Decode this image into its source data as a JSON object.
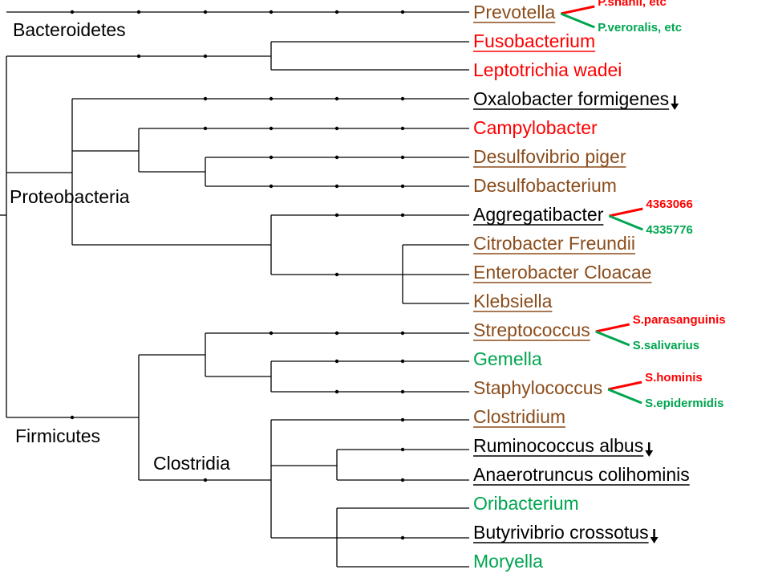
{
  "colors": {
    "black": "#000000",
    "red": "#ff0000",
    "brown": "#8b4d1c",
    "green": "#00a550"
  },
  "groups": {
    "bacteroidetes": "Bacteroidetes",
    "proteobacteria": "Proteobacteria",
    "firmicutes": "Firmicutes",
    "clostridia": "Clostridia"
  },
  "taxa": [
    {
      "label": "Prevotella",
      "color": "brown",
      "underline": true,
      "arrow": false
    },
    {
      "label": "Fusobacterium",
      "color": "red",
      "underline": true,
      "arrow": false
    },
    {
      "label": "Leptotrichia wadei",
      "color": "red",
      "underline": false,
      "arrow": false
    },
    {
      "label": "Oxalobacter formigenes",
      "color": "black",
      "underline": true,
      "arrow": true
    },
    {
      "label": "Campylobacter",
      "color": "red",
      "underline": false,
      "arrow": false
    },
    {
      "label": "Desulfovibrio piger",
      "color": "brown",
      "underline": true,
      "arrow": false
    },
    {
      "label": "Desulfobacterium",
      "color": "brown",
      "underline": false,
      "arrow": false
    },
    {
      "label": "Aggregatibacter",
      "color": "black",
      "underline": true,
      "arrow": false
    },
    {
      "label": "Citrobacter Freundii",
      "color": "brown",
      "underline": true,
      "arrow": false
    },
    {
      "label": "Enterobacter Cloacae",
      "color": "brown",
      "underline": true,
      "arrow": false
    },
    {
      "label": "Klebsiella",
      "color": "brown",
      "underline": true,
      "arrow": false
    },
    {
      "label": "Streptococcus",
      "color": "brown",
      "underline": true,
      "arrow": false
    },
    {
      "label": "Gemella",
      "color": "green",
      "underline": false,
      "arrow": false
    },
    {
      "label": "Staphylococcus",
      "color": "brown",
      "underline": false,
      "arrow": false
    },
    {
      "label": "Clostridium",
      "color": "brown",
      "underline": true,
      "arrow": false
    },
    {
      "label": "Ruminococcus albus",
      "color": "black",
      "underline": true,
      "arrow": true
    },
    {
      "label": "Anaerotruncus colihominis",
      "color": "black",
      "underline": true,
      "arrow": false
    },
    {
      "label": "Oribacterium",
      "color": "green",
      "underline": false,
      "arrow": false
    },
    {
      "label": "Butyrivibrio crossotus",
      "color": "black",
      "underline": true,
      "arrow": true
    },
    {
      "label": "Moryella",
      "color": "green",
      "underline": false,
      "arrow": false
    }
  ],
  "species_notes": [
    {
      "taxon": 0,
      "up": "P.shahii, etc",
      "down": "P.veroralis, etc"
    },
    {
      "taxon": 7,
      "up": "4363066",
      "down": "4335776"
    },
    {
      "taxon": 11,
      "up": "S.parasanguinis",
      "down": "S.salivarius"
    },
    {
      "taxon": 13,
      "up": "S.hominis",
      "down": "S.epidermidis"
    }
  ]
}
